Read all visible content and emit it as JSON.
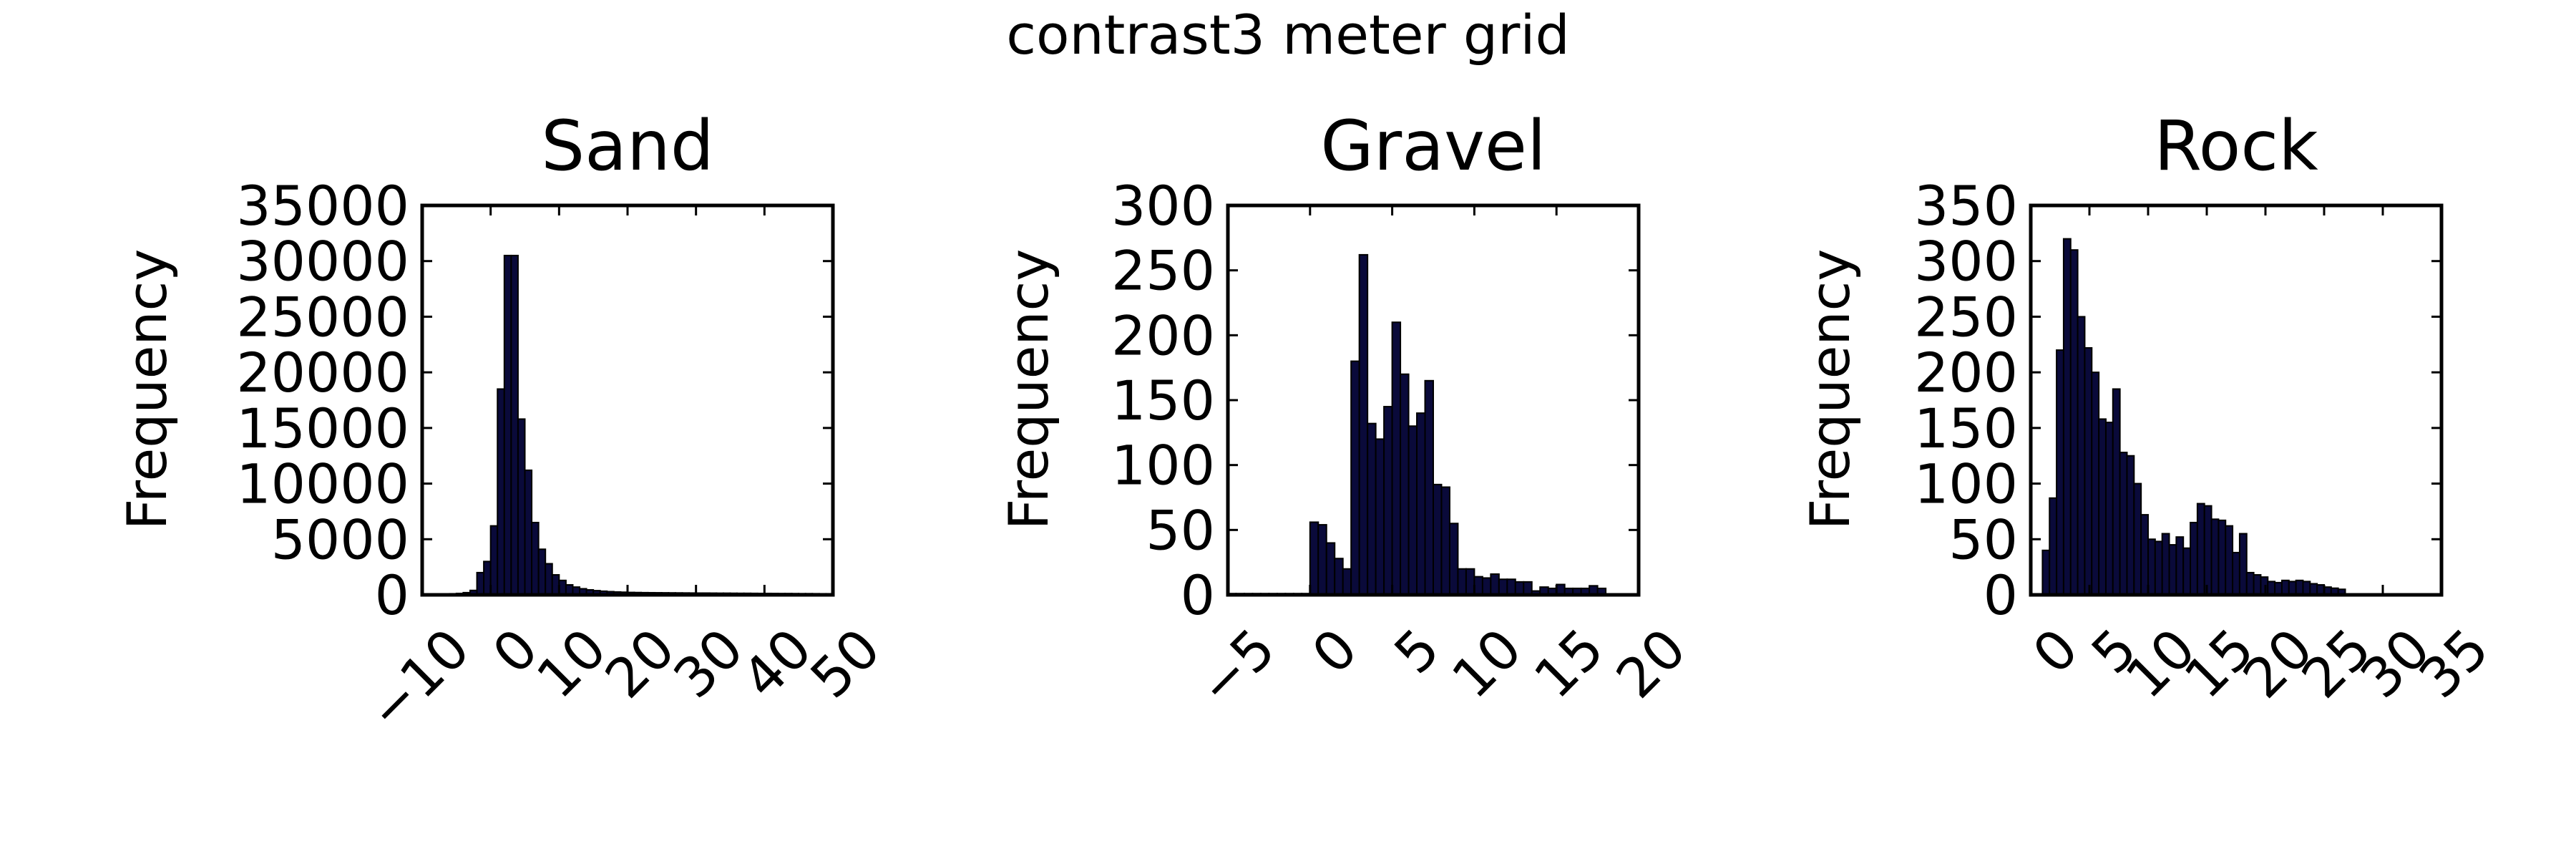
{
  "figure_title": "contrast3 meter grid",
  "chart_data": [
    {
      "type": "bar",
      "title": "Sand",
      "xlabel": "",
      "ylabel": "Frequency",
      "xlim": [
        -10,
        50
      ],
      "ylim": [
        0,
        35000
      ],
      "xticks": [
        -10,
        0,
        10,
        20,
        30,
        40,
        50
      ],
      "xtick_labels": [
        "−10",
        "0",
        "10",
        "20",
        "30",
        "40",
        "50"
      ],
      "yticks": [
        0,
        5000,
        10000,
        15000,
        20000,
        25000,
        30000,
        35000
      ],
      "ytick_labels": [
        "0",
        "5000",
        "10000",
        "15000",
        "20000",
        "25000",
        "30000",
        "35000"
      ],
      "bin_width": 1,
      "bins": [
        [
          -10,
          50
        ],
        [
          -9,
          60
        ],
        [
          -8,
          70
        ],
        [
          -7,
          80
        ],
        [
          -6,
          100
        ],
        [
          -5,
          130
        ],
        [
          -4,
          200
        ],
        [
          -3,
          400
        ],
        [
          -2,
          2000
        ],
        [
          -1,
          3000
        ],
        [
          0,
          6200
        ],
        [
          1,
          18500
        ],
        [
          2,
          30500
        ],
        [
          3,
          30500
        ],
        [
          4,
          15800
        ],
        [
          5,
          11200
        ],
        [
          6,
          6500
        ],
        [
          7,
          4100
        ],
        [
          8,
          2800
        ],
        [
          9,
          1800
        ],
        [
          10,
          1300
        ],
        [
          11,
          900
        ],
        [
          12,
          700
        ],
        [
          13,
          550
        ],
        [
          14,
          450
        ],
        [
          15,
          380
        ],
        [
          16,
          330
        ],
        [
          17,
          290
        ],
        [
          18,
          260
        ],
        [
          19,
          240
        ],
        [
          20,
          220
        ],
        [
          21,
          210
        ],
        [
          22,
          200
        ],
        [
          23,
          195
        ],
        [
          24,
          190
        ],
        [
          25,
          185
        ],
        [
          26,
          180
        ],
        [
          27,
          175
        ],
        [
          28,
          170
        ],
        [
          29,
          165
        ],
        [
          30,
          160
        ],
        [
          31,
          160
        ],
        [
          32,
          155
        ],
        [
          33,
          150
        ],
        [
          34,
          150
        ],
        [
          35,
          145
        ],
        [
          36,
          140
        ],
        [
          37,
          140
        ],
        [
          38,
          135
        ],
        [
          39,
          130
        ],
        [
          40,
          130
        ],
        [
          41,
          125
        ],
        [
          42,
          120
        ],
        [
          43,
          120
        ],
        [
          44,
          115
        ],
        [
          45,
          110
        ],
        [
          46,
          110
        ],
        [
          47,
          105
        ],
        [
          48,
          100
        ],
        [
          49,
          100
        ]
      ]
    },
    {
      "type": "bar",
      "title": "Gravel",
      "xlabel": "",
      "ylabel": "Frequency",
      "xlim": [
        -5,
        20
      ],
      "ylim": [
        0,
        300
      ],
      "xticks": [
        -5,
        0,
        5,
        10,
        15,
        20
      ],
      "xtick_labels": [
        "−5",
        "0",
        "5",
        "10",
        "15",
        "20"
      ],
      "yticks": [
        0,
        50,
        100,
        150,
        200,
        250,
        300
      ],
      "ytick_labels": [
        "0",
        "50",
        "100",
        "150",
        "200",
        "250",
        "300"
      ],
      "bin_width": 0.5,
      "bins": [
        [
          -5,
          1
        ],
        [
          -4.5,
          1
        ],
        [
          -4,
          1
        ],
        [
          -3.5,
          1
        ],
        [
          -3,
          1
        ],
        [
          -2.5,
          1
        ],
        [
          -2,
          1
        ],
        [
          -1.5,
          1
        ],
        [
          -1,
          1
        ],
        [
          -0.5,
          1
        ],
        [
          0,
          56
        ],
        [
          0.5,
          54
        ],
        [
          1,
          40
        ],
        [
          1.5,
          28
        ],
        [
          2,
          20
        ],
        [
          2.5,
          180
        ],
        [
          3,
          262
        ],
        [
          3.5,
          132
        ],
        [
          4,
          120
        ],
        [
          4.5,
          145
        ],
        [
          5,
          210
        ],
        [
          5.5,
          170
        ],
        [
          6,
          130
        ],
        [
          6.5,
          140
        ],
        [
          7,
          165
        ],
        [
          7.5,
          85
        ],
        [
          8,
          83
        ],
        [
          8.5,
          55
        ],
        [
          9,
          20
        ],
        [
          9.5,
          20
        ],
        [
          10,
          14
        ],
        [
          10.5,
          13
        ],
        [
          11,
          16
        ],
        [
          11.5,
          12
        ],
        [
          12,
          12
        ],
        [
          12.5,
          10
        ],
        [
          13,
          10
        ],
        [
          13.5,
          3
        ],
        [
          14,
          6
        ],
        [
          14.5,
          5
        ],
        [
          15,
          8
        ],
        [
          15.5,
          5
        ],
        [
          16,
          5
        ],
        [
          16.5,
          5
        ],
        [
          17,
          7
        ],
        [
          17.5,
          5
        ]
      ]
    },
    {
      "type": "bar",
      "title": "Rock",
      "xlabel": "",
      "ylabel": "Frequency",
      "xlim": [
        0,
        35
      ],
      "ylim": [
        0,
        350
      ],
      "xticks": [
        0,
        5,
        10,
        15,
        20,
        25,
        30,
        35
      ],
      "xtick_labels": [
        "0",
        "5",
        "10",
        "15",
        "20",
        "25",
        "30",
        "35"
      ],
      "yticks": [
        0,
        50,
        100,
        150,
        200,
        250,
        300,
        350
      ],
      "ytick_labels": [
        "0",
        "50",
        "100",
        "150",
        "200",
        "250",
        "300",
        "350"
      ],
      "bin_width": 0.6,
      "bins": [
        [
          1.0,
          40
        ],
        [
          1.6,
          87
        ],
        [
          2.2,
          220
        ],
        [
          2.8,
          320
        ],
        [
          3.4,
          310
        ],
        [
          4.0,
          250
        ],
        [
          4.6,
          222
        ],
        [
          5.2,
          200
        ],
        [
          5.8,
          158
        ],
        [
          6.4,
          155
        ],
        [
          7.0,
          185
        ],
        [
          7.6,
          128
        ],
        [
          8.2,
          125
        ],
        [
          8.8,
          100
        ],
        [
          9.4,
          72
        ],
        [
          10.0,
          50
        ],
        [
          10.6,
          48
        ],
        [
          11.2,
          55
        ],
        [
          11.8,
          45
        ],
        [
          12.4,
          52
        ],
        [
          13.0,
          42
        ],
        [
          13.6,
          65
        ],
        [
          14.2,
          82
        ],
        [
          14.8,
          80
        ],
        [
          15.4,
          68
        ],
        [
          16.0,
          67
        ],
        [
          16.6,
          62
        ],
        [
          17.2,
          38
        ],
        [
          17.8,
          55
        ],
        [
          18.4,
          20
        ],
        [
          19.0,
          18
        ],
        [
          19.6,
          16
        ],
        [
          20.2,
          12
        ],
        [
          20.8,
          11
        ],
        [
          21.4,
          13
        ],
        [
          22.0,
          12
        ],
        [
          22.6,
          13
        ],
        [
          23.2,
          12
        ],
        [
          23.8,
          10
        ],
        [
          24.4,
          9
        ],
        [
          25.0,
          7
        ],
        [
          25.6,
          6
        ],
        [
          26.2,
          5
        ]
      ]
    }
  ]
}
